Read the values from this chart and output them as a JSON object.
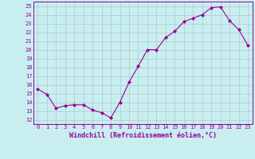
{
  "x": [
    0,
    1,
    2,
    3,
    4,
    5,
    6,
    7,
    8,
    9,
    10,
    11,
    12,
    13,
    14,
    15,
    16,
    17,
    18,
    19,
    20,
    21,
    22,
    23
  ],
  "y": [
    15.5,
    14.9,
    13.3,
    13.6,
    13.7,
    13.7,
    13.1,
    12.8,
    12.2,
    14.0,
    16.3,
    18.1,
    20.0,
    20.0,
    21.4,
    22.1,
    23.2,
    23.6,
    24.0,
    24.8,
    24.9,
    23.3,
    22.3,
    20.5
  ],
  "line_color": "#990099",
  "marker": "D",
  "marker_size": 2,
  "bg_color": "#c8eef0",
  "grid_color": "#b0c8cc",
  "xlabel": "Windchill (Refroidissement éolien,°C)",
  "xlim": [
    -0.5,
    23.5
  ],
  "ylim": [
    11.5,
    25.5
  ],
  "yticks": [
    12,
    13,
    14,
    15,
    16,
    17,
    18,
    19,
    20,
    21,
    22,
    23,
    24,
    25
  ],
  "xticks": [
    0,
    1,
    2,
    3,
    4,
    5,
    6,
    7,
    8,
    9,
    10,
    11,
    12,
    13,
    14,
    15,
    16,
    17,
    18,
    19,
    20,
    21,
    22,
    23
  ],
  "tick_fontsize": 5.0,
  "xlabel_fontsize": 6.0,
  "font_family": "monospace"
}
